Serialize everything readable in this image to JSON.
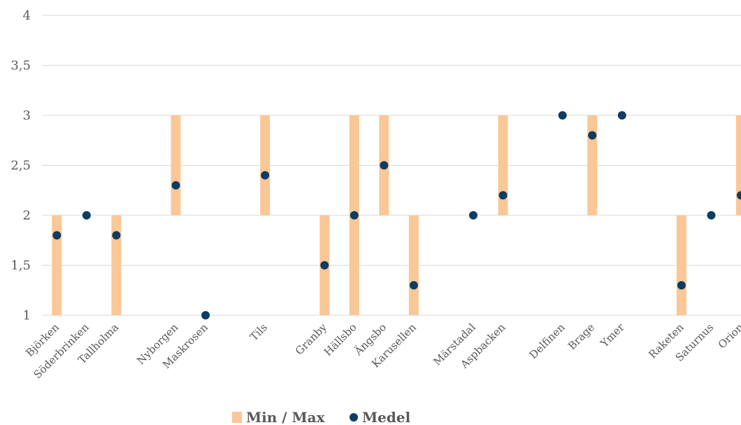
{
  "chart_data": {
    "type": "range-dot",
    "categories": [
      "Björken",
      "Söderbrinken",
      "Tallholma",
      "",
      "Nyborgen",
      "Maskrosen",
      "",
      "Tils",
      "",
      "Granby",
      "Hällsbo",
      "Ängsbo",
      "Karusellen",
      "",
      "Märstadal",
      "Aspbacken",
      "",
      "Delfinen",
      "Brage",
      "Ymer",
      "",
      "Raketen",
      "Saturnus",
      "Orion"
    ],
    "series": [
      {
        "name": "Min / Max",
        "kind": "range",
        "min": [
          1,
          null,
          1,
          null,
          2,
          null,
          null,
          2,
          null,
          1,
          1,
          2,
          1,
          null,
          null,
          2,
          null,
          null,
          2,
          null,
          null,
          1,
          null,
          2
        ],
        "max": [
          2,
          null,
          2,
          null,
          3,
          null,
          null,
          3,
          null,
          2,
          3,
          3,
          2,
          null,
          null,
          3,
          null,
          null,
          3,
          null,
          null,
          2,
          null,
          3
        ]
      },
      {
        "name": "Medel",
        "kind": "point",
        "values": [
          1.8,
          2,
          1.8,
          null,
          2.3,
          1,
          null,
          2.4,
          null,
          1.5,
          2,
          2.5,
          1.3,
          null,
          2,
          2.2,
          null,
          3,
          2.8,
          3,
          null,
          1.3,
          2,
          2.2
        ]
      }
    ],
    "yticks": [
      "1",
      "1,5",
      "2",
      "2,5",
      "3",
      "3,5",
      "4"
    ],
    "ylim": [
      1,
      4
    ],
    "grid": true,
    "legend_position": "bottom",
    "colors": {
      "range": "#fac796",
      "point": "#0e3c62",
      "grid": "#d9d9d9",
      "text": "#595959"
    }
  }
}
